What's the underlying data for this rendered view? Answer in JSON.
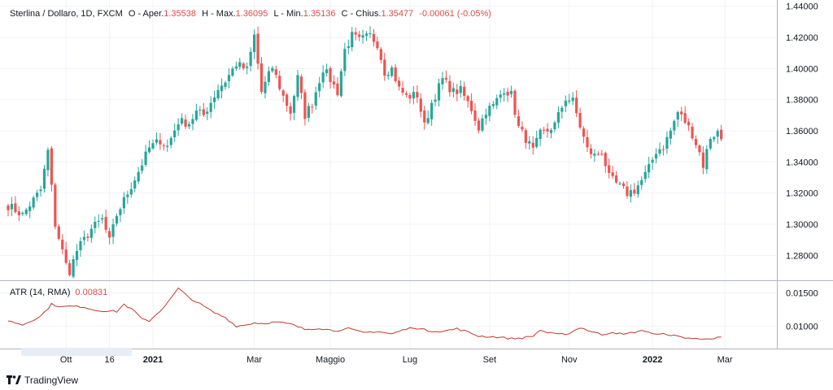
{
  "legend": {
    "symbol": "Sterlina / Dollaro, 1D, FXCM",
    "open_label": "O - Aper.",
    "open": "1.35538",
    "high_label": "H - Max.",
    "high": "1.36095",
    "low_label": "L - Min.",
    "low": "1.35136",
    "close_label": "C - Chius.",
    "close": "1.35477",
    "change": "-0.00061 (-0.05%)"
  },
  "atr_legend": {
    "label": "ATR (14, RMA)",
    "value": "0.00831"
  },
  "branding": {
    "name": "TradingView"
  },
  "colors": {
    "up": "#26a69a",
    "down": "#ef5350",
    "atr_line": "#c0392b",
    "grid": "#f0f3fa"
  },
  "chart_data": {
    "type": "candlestick",
    "title": "Sterlina / Dollaro, 1D, FXCM",
    "price_axis": {
      "ylim": [
        1.264,
        1.444
      ],
      "ticks": [
        "1.44000",
        "1.42000",
        "1.40000",
        "1.38000",
        "1.36000",
        "1.34000",
        "1.32000",
        "1.30000",
        "1.28000"
      ]
    },
    "atr_axis": {
      "ylim": [
        0.0066,
        0.0168
      ],
      "ticks": [
        "0.01500",
        "0.01000"
      ]
    },
    "x_axis": {
      "labels": [
        {
          "text": "Ott",
          "bold": false,
          "i": 16
        },
        {
          "text": "16",
          "bold": false,
          "i": 28
        },
        {
          "text": "2021",
          "bold": true,
          "i": 40
        },
        {
          "text": "Mar",
          "bold": false,
          "i": 68
        },
        {
          "text": "Maggio",
          "bold": false,
          "i": 89
        },
        {
          "text": "Lug",
          "bold": false,
          "i": 111
        },
        {
          "text": "Set",
          "bold": false,
          "i": 133
        },
        {
          "text": "Nov",
          "bold": false,
          "i": 155
        },
        {
          "text": "2022",
          "bold": true,
          "i": 178
        },
        {
          "text": "Mar",
          "bold": false,
          "i": 198
        }
      ]
    },
    "close_anchors": [
      [
        0,
        1.312
      ],
      [
        4,
        1.306
      ],
      [
        9,
        1.322
      ],
      [
        11,
        1.347
      ],
      [
        13,
        1.3
      ],
      [
        16,
        1.274
      ],
      [
        17,
        1.27
      ],
      [
        19,
        1.283
      ],
      [
        23,
        1.297
      ],
      [
        26,
        1.303
      ],
      [
        28,
        1.289
      ],
      [
        30,
        1.306
      ],
      [
        33,
        1.32
      ],
      [
        36,
        1.334
      ],
      [
        39,
        1.349
      ],
      [
        42,
        1.354
      ],
      [
        44,
        1.35
      ],
      [
        47,
        1.366
      ],
      [
        50,
        1.365
      ],
      [
        52,
        1.372
      ],
      [
        54,
        1.37
      ],
      [
        58,
        1.387
      ],
      [
        60,
        1.392
      ],
      [
        63,
        1.403
      ],
      [
        66,
        1.399
      ],
      [
        68,
        1.421
      ],
      [
        70,
        1.385
      ],
      [
        73,
        1.401
      ],
      [
        76,
        1.382
      ],
      [
        78,
        1.372
      ],
      [
        80,
        1.394
      ],
      [
        82,
        1.37
      ],
      [
        84,
        1.378
      ],
      [
        87,
        1.4
      ],
      [
        89,
        1.393
      ],
      [
        91,
        1.385
      ],
      [
        93,
        1.412
      ],
      [
        95,
        1.421
      ],
      [
        97,
        1.418
      ],
      [
        100,
        1.421
      ],
      [
        102,
        1.416
      ],
      [
        104,
        1.398
      ],
      [
        106,
        1.4
      ],
      [
        108,
        1.387
      ],
      [
        110,
        1.382
      ],
      [
        113,
        1.383
      ],
      [
        115,
        1.363
      ],
      [
        117,
        1.378
      ],
      [
        120,
        1.393
      ],
      [
        123,
        1.385
      ],
      [
        125,
        1.386
      ],
      [
        128,
        1.374
      ],
      [
        130,
        1.362
      ],
      [
        132,
        1.373
      ],
      [
        134,
        1.376
      ],
      [
        137,
        1.387
      ],
      [
        139,
        1.383
      ],
      [
        141,
        1.362
      ],
      [
        143,
        1.355
      ],
      [
        145,
        1.347
      ],
      [
        147,
        1.358
      ],
      [
        149,
        1.36
      ],
      [
        151,
        1.364
      ],
      [
        154,
        1.381
      ],
      [
        156,
        1.379
      ],
      [
        158,
        1.363
      ],
      [
        160,
        1.348
      ],
      [
        162,
        1.344
      ],
      [
        164,
        1.347
      ],
      [
        166,
        1.33
      ],
      [
        168,
        1.326
      ],
      [
        171,
        1.32
      ],
      [
        173,
        1.322
      ],
      [
        175,
        1.328
      ],
      [
        177,
        1.336
      ],
      [
        179,
        1.347
      ],
      [
        181,
        1.35
      ],
      [
        183,
        1.36
      ],
      [
        185,
        1.372
      ],
      [
        187,
        1.366
      ],
      [
        189,
        1.358
      ],
      [
        191,
        1.346
      ],
      [
        192,
        1.338
      ],
      [
        194,
        1.356
      ],
      [
        196,
        1.359
      ],
      [
        197,
        1.355
      ]
    ],
    "atr_anchors": [
      [
        0,
        0.0108
      ],
      [
        4,
        0.0102
      ],
      [
        9,
        0.0115
      ],
      [
        12,
        0.0133
      ],
      [
        15,
        0.0129
      ],
      [
        17,
        0.013
      ],
      [
        21,
        0.0129
      ],
      [
        24,
        0.0124
      ],
      [
        27,
        0.0123
      ],
      [
        30,
        0.0122
      ],
      [
        32,
        0.0133
      ],
      [
        35,
        0.0122
      ],
      [
        37,
        0.011
      ],
      [
        39,
        0.0108
      ],
      [
        42,
        0.0123
      ],
      [
        45,
        0.0142
      ],
      [
        47,
        0.0157
      ],
      [
        50,
        0.0143
      ],
      [
        54,
        0.013
      ],
      [
        57,
        0.012
      ],
      [
        60,
        0.0113
      ],
      [
        63,
        0.01
      ],
      [
        65,
        0.0101
      ],
      [
        68,
        0.0105
      ],
      [
        70,
        0.0104
      ],
      [
        74,
        0.0106
      ],
      [
        78,
        0.0103
      ],
      [
        82,
        0.0095
      ],
      [
        86,
        0.0097
      ],
      [
        90,
        0.0093
      ],
      [
        94,
        0.0096
      ],
      [
        98,
        0.009
      ],
      [
        102,
        0.0092
      ],
      [
        106,
        0.0088
      ],
      [
        109,
        0.0094
      ],
      [
        112,
        0.0098
      ],
      [
        116,
        0.0093
      ],
      [
        120,
        0.0092
      ],
      [
        124,
        0.0096
      ],
      [
        127,
        0.0091
      ],
      [
        130,
        0.0085
      ],
      [
        133,
        0.0084
      ],
      [
        136,
        0.0083
      ],
      [
        139,
        0.0081
      ],
      [
        142,
        0.0082
      ],
      [
        145,
        0.0085
      ],
      [
        147,
        0.0094
      ],
      [
        149,
        0.009
      ],
      [
        152,
        0.0087
      ],
      [
        155,
        0.0089
      ],
      [
        158,
        0.0098
      ],
      [
        161,
        0.0092
      ],
      [
        164,
        0.0087
      ],
      [
        167,
        0.0091
      ],
      [
        170,
        0.0087
      ],
      [
        173,
        0.0091
      ],
      [
        176,
        0.0093
      ],
      [
        179,
        0.0087
      ],
      [
        182,
        0.0088
      ],
      [
        185,
        0.0084
      ],
      [
        188,
        0.0082
      ],
      [
        191,
        0.008
      ],
      [
        193,
        0.0082
      ],
      [
        195,
        0.0081
      ],
      [
        197,
        0.0083
      ]
    ],
    "candle_count": 198
  }
}
